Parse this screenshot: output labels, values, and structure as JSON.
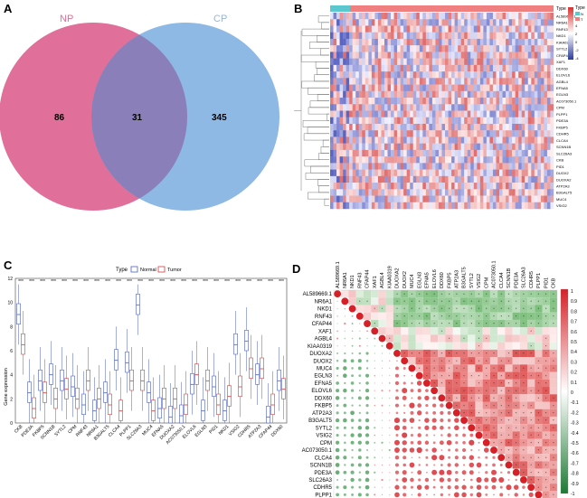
{
  "panels": {
    "a": {
      "letter": "A",
      "venn": {
        "left_label": "NP",
        "right_label": "CP",
        "left_only": "86",
        "overlap": "31",
        "right_only": "345",
        "left_color": "#e06f99",
        "right_color": "#8db9e4",
        "overlap_color": "#8a7fb8"
      }
    },
    "b": {
      "letter": "B",
      "legend_title": "Type",
      "legend_title2": "Type",
      "legend_items": [
        "N",
        "T"
      ],
      "legend_colors": [
        "#5bc8d0",
        "#f08080"
      ],
      "scale_ticks": [
        "4",
        "2",
        "0",
        "-2",
        "-4"
      ],
      "genes": [
        "AL589669.1",
        "NR6A1",
        "RNF43",
        "NKD1",
        "KIAA0319",
        "SYTL2",
        "CFAP44",
        "XAF1",
        "DDX60",
        "ELOVL6",
        "AGBL4",
        "EFNA5",
        "EGLN3",
        "AC073050.1",
        "CPM",
        "PLPP1",
        "PDE3A",
        "FKBP5",
        "CDHR5",
        "CLCA4",
        "SCNN1B",
        "SLC26A3",
        "CKB",
        "PID1",
        "DUOX2",
        "DUOXA2",
        "ATP2A3",
        "B3GALT5",
        "MUC4",
        "VSIG2"
      ]
    },
    "c": {
      "letter": "C",
      "legend_title": "Type",
      "legend_items": [
        "Normal",
        "Tumor"
      ],
      "legend_colors": [
        "#4a5fc1",
        "#e0373b"
      ],
      "ylabel": "Gene expression",
      "yticks": [
        "0",
        "2",
        "4",
        "6",
        "8",
        "10",
        "12"
      ],
      "significance": "***",
      "genes": [
        "CKB",
        "PDE3A",
        "FKBP5",
        "SCNN1B",
        "SYTL2",
        "CPM",
        "RNF43",
        "NR6A1",
        "B3GALT5",
        "CLCA4",
        "PLPP1",
        "SLC26A3",
        "MUC4",
        "EFNA5",
        "DUOXA2",
        "AC073050.1",
        "ELOVL6",
        "EGLN3",
        "PID1",
        "NKD1",
        "VSIG2",
        "CDHR5",
        "ATP2A3",
        "CFAP44",
        "DDX60"
      ],
      "normal_medians": [
        9.0,
        2.5,
        3.5,
        4.0,
        3.5,
        3.0,
        1.5,
        1.0,
        2.5,
        5.2,
        5.0,
        9.8,
        2.5,
        1.2,
        0.5,
        0.6,
        3.2,
        1.0,
        3.0,
        1.0,
        6.5,
        6.8,
        4.0,
        0.5,
        3.5
      ],
      "tumor_medians": [
        6.5,
        1.2,
        2.5,
        2.0,
        2.8,
        2.0,
        3.5,
        2.0,
        1.5,
        1.0,
        3.5,
        3.5,
        1.0,
        2.0,
        2.0,
        1.5,
        4.0,
        3.5,
        1.5,
        2.2,
        3.0,
        4.5,
        4.5,
        1.5,
        2.8
      ]
    },
    "d": {
      "letter": "D",
      "genes": [
        "AL589669.1",
        "NR6A1",
        "NKD1",
        "RNF43",
        "CFAP44",
        "XAF1",
        "AGBL4",
        "KIAA0319",
        "DUOXA2",
        "DUOX2",
        "MUC4",
        "EGLN3",
        "EFNA5",
        "ELOVL6",
        "DDX60",
        "FKBP5",
        "ATP2A3",
        "B3GALT5",
        "SYTL2",
        "VSIG2",
        "CPM",
        "AC073050.1",
        "CLCA4",
        "SCNN1B",
        "PDE3A",
        "SLC26A3",
        "CDHR5",
        "PLPP1",
        "PID1",
        "CKB"
      ],
      "scale_ticks": [
        "1",
        "0.9",
        "0.8",
        "0.7",
        "0.6",
        "0.5",
        "0.4",
        "0.3",
        "0.2",
        "0.1",
        "0",
        "-0.1",
        "-0.2",
        "-0.3",
        "-0.4",
        "-0.5",
        "-0.6",
        "-0.7",
        "-0.8",
        "-0.9",
        "-1"
      ],
      "significance": "*"
    }
  }
}
